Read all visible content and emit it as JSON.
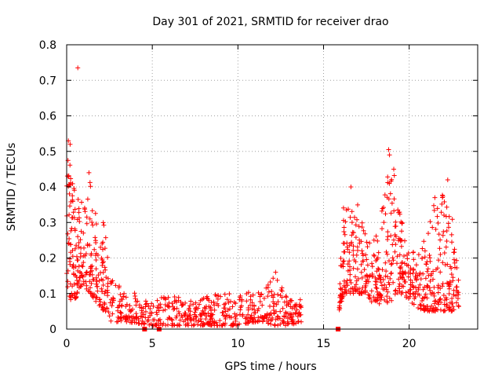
{
  "chart_data": {
    "type": "scatter",
    "title": "Day 301 of 2021, SRMTID for receiver drao",
    "xlabel": "GPS time / hours",
    "ylabel": "SRMTID / TECUs",
    "xlim": [
      0,
      24
    ],
    "ylim": [
      0,
      0.8
    ],
    "x_ticks": [
      0,
      5,
      10,
      15,
      20
    ],
    "x_tick_labels": [
      "0",
      "5",
      "10",
      "15",
      "20"
    ],
    "y_ticks": [
      0,
      0.1,
      0.2,
      0.3,
      0.4,
      0.5,
      0.6,
      0.7,
      0.8
    ],
    "y_tick_labels": [
      "0",
      "0.1",
      "0.2",
      "0.3",
      "0.4",
      "0.5",
      "0.6",
      "0.7",
      "0.8"
    ],
    "grid": true,
    "marker_color": "#ff0000",
    "marker": "plus",
    "gap_markers_x": [
      4.55,
      5.4,
      15.85
    ],
    "series": [
      {
        "name": "SRMTID",
        "segments": [
          {
            "x_start": 0.0,
            "x_end": 1.0,
            "count": 120,
            "envelope": [
              [
                0.0,
                0.12,
                0.48
              ],
              [
                0.25,
                0.08,
                0.53
              ],
              [
                0.5,
                0.08,
                0.42
              ],
              [
                0.75,
                0.12,
                0.34
              ],
              [
                1.0,
                0.12,
                0.38
              ]
            ]
          },
          {
            "x_start": 1.0,
            "x_end": 2.4,
            "count": 120,
            "envelope": [
              [
                1.0,
                0.12,
                0.38
              ],
              [
                1.4,
                0.1,
                0.44
              ],
              [
                1.8,
                0.07,
                0.3
              ],
              [
                2.2,
                0.05,
                0.32
              ],
              [
                2.4,
                0.05,
                0.2
              ]
            ]
          },
          {
            "x_start": 2.4,
            "x_end": 13.7,
            "count": 560,
            "envelope": [
              [
                2.4,
                0.02,
                0.16
              ],
              [
                3.5,
                0.02,
                0.12
              ],
              [
                5.0,
                0.01,
                0.08
              ],
              [
                6.0,
                0.01,
                0.1
              ],
              [
                7.0,
                0.01,
                0.08
              ],
              [
                9.0,
                0.01,
                0.1
              ],
              [
                10.0,
                0.01,
                0.12
              ],
              [
                11.0,
                0.02,
                0.1
              ],
              [
                12.2,
                0.01,
                0.15
              ],
              [
                13.0,
                0.01,
                0.08
              ],
              [
                13.7,
                0.02,
                0.09
              ]
            ]
          },
          {
            "x_start": 15.9,
            "x_end": 17.6,
            "count": 150,
            "envelope": [
              [
                15.9,
                0.05,
                0.1
              ],
              [
                16.2,
                0.1,
                0.38
              ],
              [
                16.6,
                0.1,
                0.36
              ],
              [
                17.0,
                0.1,
                0.38
              ],
              [
                17.3,
                0.1,
                0.3
              ],
              [
                17.6,
                0.1,
                0.25
              ]
            ]
          },
          {
            "x_start": 17.6,
            "x_end": 22.9,
            "count": 420,
            "envelope": [
              [
                17.6,
                0.08,
                0.25
              ],
              [
                18.2,
                0.07,
                0.3
              ],
              [
                18.8,
                0.07,
                0.45
              ],
              [
                19.2,
                0.09,
                0.44
              ],
              [
                19.6,
                0.1,
                0.3
              ],
              [
                20.0,
                0.08,
                0.22
              ],
              [
                20.5,
                0.06,
                0.22
              ],
              [
                21.0,
                0.05,
                0.28
              ],
              [
                21.5,
                0.05,
                0.36
              ],
              [
                22.0,
                0.05,
                0.4
              ],
              [
                22.5,
                0.05,
                0.33
              ],
              [
                22.9,
                0.06,
                0.14
              ]
            ]
          }
        ],
        "highlights": [
          {
            "x": 0.65,
            "y": 0.735
          },
          {
            "x": 0.1,
            "y": 0.53
          },
          {
            "x": 0.2,
            "y": 0.52
          },
          {
            "x": 18.8,
            "y": 0.505
          },
          {
            "x": 18.85,
            "y": 0.49
          },
          {
            "x": 19.1,
            "y": 0.45
          },
          {
            "x": 22.25,
            "y": 0.42
          },
          {
            "x": 1.3,
            "y": 0.44
          },
          {
            "x": 16.6,
            "y": 0.4
          },
          {
            "x": 21.5,
            "y": 0.37
          },
          {
            "x": 12.2,
            "y": 0.16
          }
        ]
      }
    ]
  }
}
